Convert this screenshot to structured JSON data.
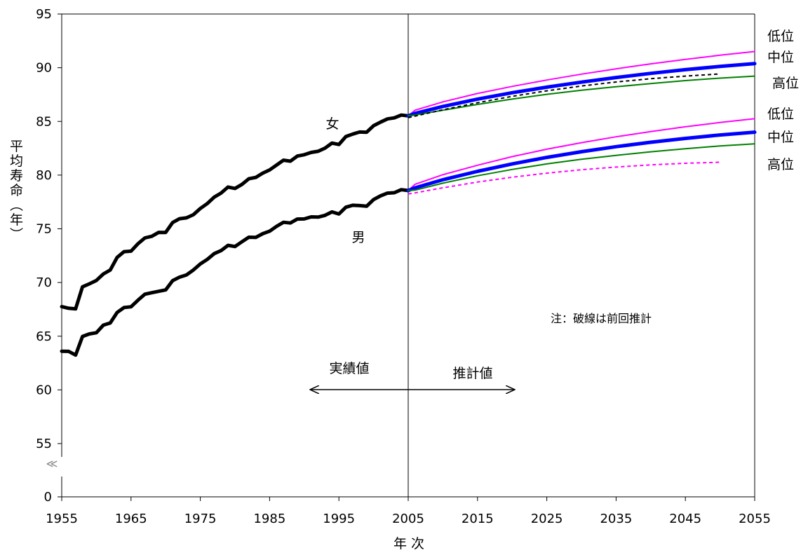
{
  "chart_data": {
    "type": "line",
    "xlabel": "年 次",
    "ylabel": "平均寿命（年）",
    "xlim": [
      1955,
      2055
    ],
    "ylim": [
      55,
      95
    ],
    "y_axis_break": {
      "below": 55,
      "bottom_label": "0",
      "symbol": "≪"
    },
    "x_ticks": [
      1955,
      1965,
      1975,
      1985,
      1995,
      2005,
      2015,
      2025,
      2035,
      2045,
      2055
    ],
    "y_ticks": [
      55,
      60,
      65,
      70,
      75,
      80,
      85,
      90,
      95
    ],
    "divider_x": 2005,
    "series": [
      {
        "id": "female_actual",
        "color": "#000000",
        "width": 5,
        "dash": "",
        "x": [
          1955,
          1956,
          1957,
          1958,
          1959,
          1960,
          1961,
          1962,
          1963,
          1964,
          1965,
          1966,
          1967,
          1968,
          1969,
          1970,
          1971,
          1972,
          1973,
          1974,
          1975,
          1976,
          1977,
          1978,
          1979,
          1980,
          1981,
          1982,
          1983,
          1984,
          1985,
          1986,
          1987,
          1988,
          1989,
          1990,
          1991,
          1992,
          1993,
          1994,
          1995,
          1996,
          1997,
          1998,
          1999,
          2000,
          2001,
          2002,
          2003,
          2004,
          2005
        ],
        "y": [
          67.75,
          67.6,
          67.54,
          69.6,
          69.88,
          70.19,
          70.79,
          71.16,
          72.34,
          72.87,
          72.92,
          73.61,
          74.15,
          74.3,
          74.67,
          74.66,
          75.58,
          75.94,
          76.02,
          76.31,
          76.89,
          77.35,
          77.95,
          78.33,
          78.89,
          78.76,
          79.13,
          79.66,
          79.78,
          80.18,
          80.48,
          80.93,
          81.39,
          81.3,
          81.77,
          81.9,
          82.11,
          82.22,
          82.51,
          82.98,
          82.85,
          83.59,
          83.82,
          84.01,
          83.99,
          84.6,
          84.93,
          85.23,
          85.33,
          85.59,
          85.52
        ]
      },
      {
        "id": "male_actual",
        "color": "#000000",
        "width": 5,
        "dash": "",
        "x": [
          1955,
          1956,
          1957,
          1958,
          1959,
          1960,
          1961,
          1962,
          1963,
          1964,
          1965,
          1966,
          1967,
          1968,
          1969,
          1970,
          1971,
          1972,
          1973,
          1974,
          1975,
          1976,
          1977,
          1978,
          1979,
          1980,
          1981,
          1982,
          1983,
          1984,
          1985,
          1986,
          1987,
          1988,
          1989,
          1990,
          1991,
          1992,
          1993,
          1994,
          1995,
          1996,
          1997,
          1998,
          1999,
          2000,
          2001,
          2002,
          2003,
          2004,
          2005
        ],
        "y": [
          63.6,
          63.59,
          63.24,
          64.98,
          65.21,
          65.32,
          66.03,
          66.23,
          67.21,
          67.67,
          67.74,
          68.35,
          68.91,
          69.05,
          69.18,
          69.31,
          70.17,
          70.5,
          70.7,
          71.16,
          71.73,
          72.15,
          72.69,
          72.97,
          73.46,
          73.35,
          73.79,
          74.22,
          74.2,
          74.54,
          74.78,
          75.23,
          75.61,
          75.54,
          75.91,
          75.92,
          76.11,
          76.09,
          76.25,
          76.57,
          76.38,
          77.01,
          77.19,
          77.16,
          77.1,
          77.72,
          78.07,
          78.32,
          78.36,
          78.64,
          78.56
        ]
      },
      {
        "id": "female_low",
        "color": "#ff00ff",
        "width": 2,
        "dash": "",
        "x": [
          2005,
          2006,
          2010,
          2015,
          2020,
          2025,
          2030,
          2035,
          2040,
          2045,
          2050,
          2055
        ],
        "y": [
          85.52,
          86.05,
          86.82,
          87.6,
          88.26,
          88.85,
          89.4,
          89.9,
          90.36,
          90.78,
          91.16,
          91.51
        ]
      },
      {
        "id": "female_mid",
        "color": "#0000ff",
        "width": 5,
        "dash": "",
        "x": [
          2005,
          2006,
          2010,
          2015,
          2020,
          2025,
          2030,
          2035,
          2040,
          2045,
          2050,
          2055
        ],
        "y": [
          85.52,
          85.75,
          86.39,
          87.08,
          87.67,
          88.19,
          88.66,
          89.09,
          89.47,
          89.82,
          90.12,
          90.38
        ]
      },
      {
        "id": "female_high",
        "color": "#008000",
        "width": 2,
        "dash": "",
        "x": [
          2005,
          2006,
          2010,
          2015,
          2020,
          2025,
          2030,
          2035,
          2040,
          2045,
          2050,
          2055
        ],
        "y": [
          85.52,
          85.6,
          86.04,
          86.58,
          87.08,
          87.52,
          87.9,
          88.23,
          88.53,
          88.8,
          89.03,
          89.22
        ]
      },
      {
        "id": "female_prev",
        "color": "#000000",
        "width": 2,
        "dash": "5,4",
        "x": [
          2005,
          2006,
          2010,
          2015,
          2020,
          2025,
          2030,
          2035,
          2040,
          2045,
          2050
        ],
        "y": [
          85.35,
          85.5,
          86.08,
          86.74,
          87.33,
          87.85,
          88.3,
          88.67,
          88.98,
          89.22,
          89.42
        ]
      },
      {
        "id": "male_low",
        "color": "#ff00ff",
        "width": 2,
        "dash": "",
        "x": [
          2005,
          2006,
          2010,
          2015,
          2020,
          2025,
          2030,
          2035,
          2040,
          2045,
          2050,
          2055
        ],
        "y": [
          78.56,
          79.15,
          80.04,
          80.92,
          81.72,
          82.41,
          83.02,
          83.57,
          84.06,
          84.5,
          84.9,
          85.25
        ]
      },
      {
        "id": "male_mid",
        "color": "#0000ff",
        "width": 5,
        "dash": "",
        "x": [
          2005,
          2006,
          2010,
          2015,
          2020,
          2025,
          2030,
          2035,
          2040,
          2045,
          2050,
          2055
        ],
        "y": [
          78.56,
          78.82,
          79.57,
          80.35,
          81.04,
          81.65,
          82.18,
          82.65,
          83.06,
          83.42,
          83.74,
          84.0
        ]
      },
      {
        "id": "male_high",
        "color": "#008000",
        "width": 2,
        "dash": "",
        "x": [
          2005,
          2006,
          2010,
          2015,
          2020,
          2025,
          2030,
          2035,
          2040,
          2045,
          2050,
          2055
        ],
        "y": [
          78.56,
          78.6,
          79.25,
          79.94,
          80.53,
          81.04,
          81.47,
          81.84,
          82.17,
          82.46,
          82.71,
          82.91
        ]
      },
      {
        "id": "male_prev",
        "color": "#ff00ff",
        "width": 2,
        "dash": "5,4",
        "x": [
          2005,
          2006,
          2010,
          2015,
          2020,
          2025,
          2030,
          2035,
          2040,
          2045,
          2050
        ],
        "y": [
          78.25,
          78.35,
          78.82,
          79.35,
          79.8,
          80.18,
          80.5,
          80.75,
          80.95,
          81.1,
          81.2
        ]
      }
    ],
    "labels": {
      "female": "女",
      "male": "男",
      "female_low": "低位",
      "female_mid": "中位",
      "female_high": "高位",
      "male_low": "低位",
      "male_mid": "中位",
      "male_high": "高位",
      "note": "注：破線は前回推計",
      "actual": "実績値",
      "projected": "推計値"
    }
  }
}
